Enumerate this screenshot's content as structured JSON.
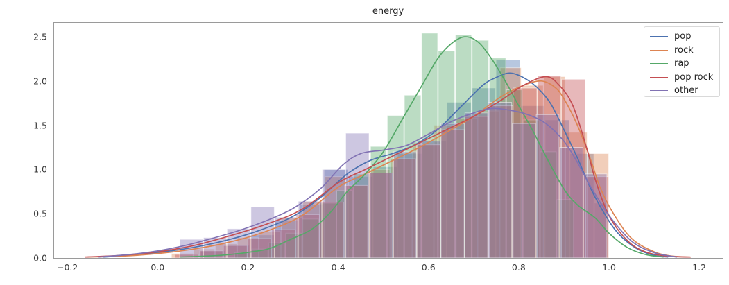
{
  "figure": {
    "background": "#ffffff",
    "spine_color": "#9a9a9a",
    "tick_color": "#3a3a3a",
    "title_color": "#262626"
  },
  "chart_data": {
    "type": "histogram+kde-distplot",
    "title": "energy",
    "xlabel": "",
    "ylabel": "",
    "xlim": [
      -0.231,
      1.252
    ],
    "ylim": [
      0,
      2.665
    ],
    "grid": false,
    "legend_position": "upper right",
    "bar_alpha": 0.4,
    "x_ticks": [
      {
        "v": -0.2,
        "label": "−0.2"
      },
      {
        "v": 0.0,
        "label": "0.0"
      },
      {
        "v": 0.2,
        "label": "0.2"
      },
      {
        "v": 0.4,
        "label": "0.4"
      },
      {
        "v": 0.6,
        "label": "0.6"
      },
      {
        "v": 0.8,
        "label": "0.8"
      },
      {
        "v": 1.0,
        "label": "1.0"
      },
      {
        "v": 1.2,
        "label": "1.2"
      }
    ],
    "y_ticks": [
      {
        "v": 0.0,
        "label": "0.0"
      },
      {
        "v": 0.5,
        "label": "0.5"
      },
      {
        "v": 1.0,
        "label": "1.0"
      },
      {
        "v": 1.5,
        "label": "1.5"
      },
      {
        "v": 2.0,
        "label": "2.0"
      },
      {
        "v": 2.5,
        "label": "2.5"
      }
    ],
    "series": [
      {
        "name": "pop",
        "color": "#4c72b0",
        "kde_peak": {
          "x": 0.78,
          "y": 2.09
        },
        "bins": [
          [
            0.095,
            0.15,
            0.08
          ],
          [
            0.15,
            0.204,
            0.14
          ],
          [
            0.204,
            0.259,
            0.26
          ],
          [
            0.259,
            0.313,
            0.42
          ],
          [
            0.313,
            0.368,
            0.6
          ],
          [
            0.368,
            0.422,
            1.0
          ],
          [
            0.422,
            0.477,
            0.92
          ],
          [
            0.477,
            0.531,
            1.03
          ],
          [
            0.531,
            0.586,
            1.18
          ],
          [
            0.586,
            0.64,
            1.32
          ],
          [
            0.64,
            0.695,
            1.76
          ],
          [
            0.695,
            0.749,
            1.92
          ],
          [
            0.749,
            0.804,
            2.24
          ],
          [
            0.804,
            0.858,
            1.72
          ],
          [
            0.858,
            0.913,
            1.56
          ],
          [
            0.913,
            0.967,
            1.18
          ],
          [
            0.967,
            1.0,
            0.62
          ]
        ],
        "kde": [
          [
            -0.12,
            0.01
          ],
          [
            -0.06,
            0.03
          ],
          [
            0.0,
            0.06
          ],
          [
            0.08,
            0.12
          ],
          [
            0.16,
            0.21
          ],
          [
            0.23,
            0.32
          ],
          [
            0.3,
            0.47
          ],
          [
            0.36,
            0.68
          ],
          [
            0.42,
            0.95
          ],
          [
            0.47,
            1.1
          ],
          [
            0.52,
            1.18
          ],
          [
            0.57,
            1.28
          ],
          [
            0.62,
            1.45
          ],
          [
            0.67,
            1.7
          ],
          [
            0.72,
            1.95
          ],
          [
            0.75,
            2.04
          ],
          [
            0.78,
            2.09
          ],
          [
            0.81,
            2.04
          ],
          [
            0.84,
            1.93
          ],
          [
            0.87,
            1.75
          ],
          [
            0.9,
            1.45
          ],
          [
            0.93,
            1.13
          ],
          [
            0.96,
            0.78
          ],
          [
            0.99,
            0.5
          ],
          [
            1.02,
            0.28
          ],
          [
            1.06,
            0.11
          ],
          [
            1.1,
            0.03
          ],
          [
            1.13,
            0.01
          ]
        ]
      },
      {
        "name": "rock",
        "color": "#dd8452",
        "kde_peak": {
          "x": 0.85,
          "y": 2.0
        },
        "bins": [
          [
            0.03,
            0.079,
            0.05
          ],
          [
            0.079,
            0.127,
            0.1
          ],
          [
            0.127,
            0.176,
            0.16
          ],
          [
            0.176,
            0.224,
            0.23
          ],
          [
            0.224,
            0.273,
            0.3
          ],
          [
            0.273,
            0.321,
            0.46
          ],
          [
            0.321,
            0.37,
            0.64
          ],
          [
            0.37,
            0.418,
            0.92
          ],
          [
            0.418,
            0.467,
            0.82
          ],
          [
            0.467,
            0.515,
            1.0
          ],
          [
            0.515,
            0.564,
            1.12
          ],
          [
            0.564,
            0.612,
            1.3
          ],
          [
            0.612,
            0.661,
            1.5
          ],
          [
            0.661,
            0.709,
            1.58
          ],
          [
            0.709,
            0.758,
            1.66
          ],
          [
            0.758,
            0.806,
            2.15
          ],
          [
            0.806,
            0.855,
            1.95
          ],
          [
            0.855,
            0.903,
            2.05
          ],
          [
            0.903,
            0.952,
            1.42
          ],
          [
            0.952,
            1.0,
            1.18
          ]
        ],
        "kde": [
          [
            -0.16,
            0.01
          ],
          [
            -0.08,
            0.02
          ],
          [
            0.0,
            0.05
          ],
          [
            0.08,
            0.1
          ],
          [
            0.16,
            0.18
          ],
          [
            0.24,
            0.3
          ],
          [
            0.32,
            0.48
          ],
          [
            0.4,
            0.8
          ],
          [
            0.46,
            0.95
          ],
          [
            0.52,
            1.1
          ],
          [
            0.58,
            1.25
          ],
          [
            0.64,
            1.42
          ],
          [
            0.7,
            1.6
          ],
          [
            0.76,
            1.82
          ],
          [
            0.81,
            1.95
          ],
          [
            0.85,
            2.0
          ],
          [
            0.88,
            1.93
          ],
          [
            0.9,
            1.8
          ],
          [
            0.93,
            1.5
          ],
          [
            0.96,
            1.1
          ],
          [
            0.98,
            0.8
          ],
          [
            1.01,
            0.5
          ],
          [
            1.05,
            0.22
          ],
          [
            1.1,
            0.07
          ],
          [
            1.14,
            0.02
          ],
          [
            1.18,
            0.01
          ]
        ]
      },
      {
        "name": "rap",
        "color": "#55a868",
        "kde_peak": {
          "x": 0.68,
          "y": 2.5
        },
        "bins": [
          [
            0.17,
            0.208,
            0.06
          ],
          [
            0.208,
            0.245,
            0.1
          ],
          [
            0.245,
            0.283,
            0.17
          ],
          [
            0.283,
            0.32,
            0.28
          ],
          [
            0.32,
            0.358,
            0.44
          ],
          [
            0.358,
            0.396,
            0.62
          ],
          [
            0.396,
            0.433,
            0.76
          ],
          [
            0.433,
            0.471,
            0.95
          ],
          [
            0.471,
            0.508,
            1.26
          ],
          [
            0.508,
            0.546,
            1.61
          ],
          [
            0.546,
            0.584,
            1.84
          ],
          [
            0.584,
            0.621,
            2.54
          ],
          [
            0.621,
            0.659,
            2.34
          ],
          [
            0.659,
            0.696,
            2.52
          ],
          [
            0.696,
            0.734,
            2.46
          ],
          [
            0.734,
            0.772,
            2.26
          ],
          [
            0.772,
            0.809,
            1.9
          ],
          [
            0.809,
            0.847,
            1.56
          ],
          [
            0.847,
            0.884,
            1.2
          ],
          [
            0.884,
            0.922,
            0.66
          ]
        ],
        "kde": [
          [
            0.05,
            0.01
          ],
          [
            0.14,
            0.03
          ],
          [
            0.21,
            0.07
          ],
          [
            0.25,
            0.11
          ],
          [
            0.29,
            0.2
          ],
          [
            0.34,
            0.32
          ],
          [
            0.38,
            0.5
          ],
          [
            0.42,
            0.75
          ],
          [
            0.46,
            0.95
          ],
          [
            0.5,
            1.2
          ],
          [
            0.54,
            1.55
          ],
          [
            0.58,
            1.9
          ],
          [
            0.62,
            2.25
          ],
          [
            0.65,
            2.42
          ],
          [
            0.68,
            2.5
          ],
          [
            0.71,
            2.44
          ],
          [
            0.74,
            2.25
          ],
          [
            0.77,
            2.0
          ],
          [
            0.8,
            1.72
          ],
          [
            0.83,
            1.45
          ],
          [
            0.86,
            1.15
          ],
          [
            0.9,
            0.78
          ],
          [
            0.93,
            0.6
          ],
          [
            0.97,
            0.45
          ],
          [
            1.0,
            0.28
          ],
          [
            1.04,
            0.12
          ],
          [
            1.08,
            0.04
          ],
          [
            1.12,
            0.01
          ]
        ]
      },
      {
        "name": "pop rock",
        "color": "#c44e52",
        "kde_peak": {
          "x": 0.86,
          "y": 2.05
        },
        "bins": [
          [
            0.038,
            0.092,
            0.04
          ],
          [
            0.092,
            0.145,
            0.08
          ],
          [
            0.145,
            0.199,
            0.14
          ],
          [
            0.199,
            0.252,
            0.22
          ],
          [
            0.252,
            0.306,
            0.32
          ],
          [
            0.306,
            0.359,
            0.49
          ],
          [
            0.359,
            0.413,
            0.63
          ],
          [
            0.413,
            0.466,
            0.82
          ],
          [
            0.466,
            0.52,
            0.96
          ],
          [
            0.52,
            0.573,
            1.12
          ],
          [
            0.573,
            0.627,
            1.28
          ],
          [
            0.627,
            0.68,
            1.45
          ],
          [
            0.68,
            0.734,
            1.6
          ],
          [
            0.734,
            0.787,
            1.72
          ],
          [
            0.787,
            0.841,
            1.92
          ],
          [
            0.841,
            0.894,
            2.06
          ],
          [
            0.894,
            0.948,
            2.02
          ],
          [
            0.948,
            1.0,
            0.92
          ]
        ],
        "kde": [
          [
            -0.16,
            0.01
          ],
          [
            -0.08,
            0.03
          ],
          [
            0.0,
            0.07
          ],
          [
            0.08,
            0.14
          ],
          [
            0.16,
            0.25
          ],
          [
            0.24,
            0.38
          ],
          [
            0.32,
            0.55
          ],
          [
            0.4,
            0.85
          ],
          [
            0.46,
            1.0
          ],
          [
            0.52,
            1.15
          ],
          [
            0.58,
            1.3
          ],
          [
            0.64,
            1.45
          ],
          [
            0.7,
            1.6
          ],
          [
            0.76,
            1.78
          ],
          [
            0.81,
            1.95
          ],
          [
            0.86,
            2.05
          ],
          [
            0.89,
            1.95
          ],
          [
            0.92,
            1.72
          ],
          [
            0.95,
            1.25
          ],
          [
            0.97,
            0.88
          ],
          [
            1.0,
            0.48
          ],
          [
            1.04,
            0.2
          ],
          [
            1.08,
            0.07
          ],
          [
            1.13,
            0.02
          ],
          [
            1.18,
            0.01
          ]
        ]
      },
      {
        "name": "other",
        "color": "#8172b3",
        "kde_peak": {
          "x": 0.74,
          "y": 1.69
        },
        "bins": [
          [
            0.048,
            0.101,
            0.21
          ],
          [
            0.101,
            0.153,
            0.23
          ],
          [
            0.153,
            0.206,
            0.33
          ],
          [
            0.206,
            0.259,
            0.58
          ],
          [
            0.259,
            0.311,
            0.46
          ],
          [
            0.311,
            0.364,
            0.64
          ],
          [
            0.364,
            0.416,
            1.0
          ],
          [
            0.416,
            0.469,
            1.41
          ],
          [
            0.469,
            0.522,
            0.96
          ],
          [
            0.522,
            0.574,
            1.2
          ],
          [
            0.574,
            0.627,
            1.32
          ],
          [
            0.627,
            0.68,
            1.52
          ],
          [
            0.68,
            0.732,
            1.64
          ],
          [
            0.732,
            0.785,
            1.76
          ],
          [
            0.785,
            0.838,
            1.52
          ],
          [
            0.838,
            0.89,
            1.62
          ],
          [
            0.89,
            0.943,
            1.25
          ],
          [
            0.943,
            0.996,
            0.95
          ]
        ],
        "kde": [
          [
            -0.13,
            0.01
          ],
          [
            -0.06,
            0.04
          ],
          [
            0.0,
            0.08
          ],
          [
            0.06,
            0.14
          ],
          [
            0.12,
            0.22
          ],
          [
            0.18,
            0.31
          ],
          [
            0.24,
            0.42
          ],
          [
            0.3,
            0.56
          ],
          [
            0.36,
            0.78
          ],
          [
            0.41,
            1.05
          ],
          [
            0.45,
            1.18
          ],
          [
            0.5,
            1.22
          ],
          [
            0.55,
            1.27
          ],
          [
            0.6,
            1.4
          ],
          [
            0.65,
            1.54
          ],
          [
            0.7,
            1.64
          ],
          [
            0.74,
            1.69
          ],
          [
            0.78,
            1.67
          ],
          [
            0.82,
            1.62
          ],
          [
            0.86,
            1.52
          ],
          [
            0.9,
            1.32
          ],
          [
            0.93,
            1.08
          ],
          [
            0.96,
            0.8
          ],
          [
            1.0,
            0.48
          ],
          [
            1.05,
            0.19
          ],
          [
            1.1,
            0.06
          ],
          [
            1.15,
            0.01
          ]
        ]
      }
    ]
  }
}
